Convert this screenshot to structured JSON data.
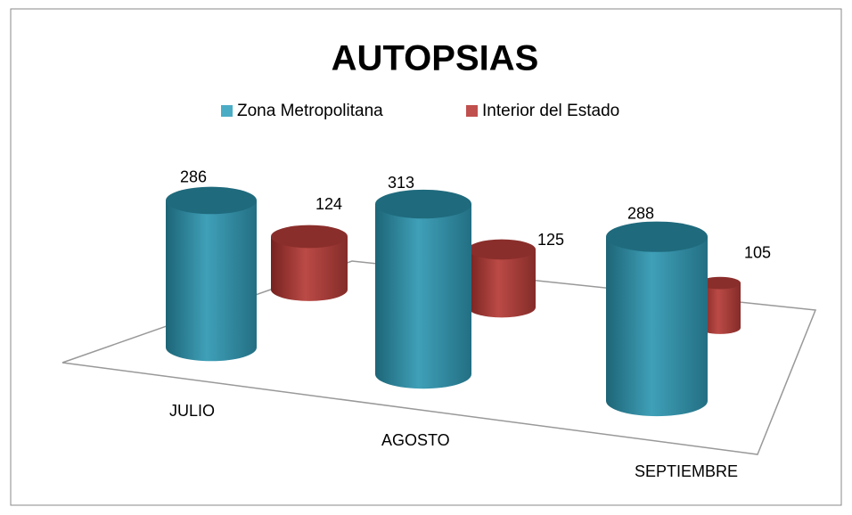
{
  "chart_data": {
    "type": "cylinder-bar",
    "title": "AUTOPSIAS",
    "categories": [
      "JULIO",
      "AGOSTO",
      "SEPTIEMBRE"
    ],
    "series": [
      {
        "name": "Zona Metropolitana",
        "color": "#4bacc6",
        "values": [
          286,
          313,
          288
        ]
      },
      {
        "name": "Interior del Estado",
        "color": "#c0504d",
        "values": [
          124,
          125,
          105
        ]
      }
    ],
    "legend": "top"
  }
}
